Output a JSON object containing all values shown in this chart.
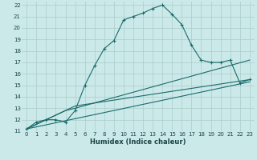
{
  "xlabel": "Humidex (Indice chaleur)",
  "bg_color": "#cce9e9",
  "grid_color": "#aacccc",
  "line_color": "#1a6b6b",
  "xlim": [
    -0.5,
    23.5
  ],
  "ylim": [
    11,
    22.3
  ],
  "xticks": [
    0,
    1,
    2,
    3,
    4,
    5,
    6,
    7,
    8,
    9,
    10,
    11,
    12,
    13,
    14,
    15,
    16,
    17,
    18,
    19,
    20,
    21,
    22,
    23
  ],
  "yticks": [
    11,
    12,
    13,
    14,
    15,
    16,
    17,
    18,
    19,
    20,
    21,
    22
  ],
  "line1_x": [
    0,
    1,
    2,
    3,
    4,
    5,
    6,
    7,
    8,
    9,
    10,
    11,
    12,
    13,
    14,
    15,
    16,
    17,
    18,
    19,
    20,
    21,
    22,
    23
  ],
  "line1_y": [
    11.2,
    11.8,
    12.0,
    12.0,
    11.8,
    12.8,
    15.0,
    16.7,
    18.2,
    18.9,
    20.7,
    21.0,
    21.3,
    21.7,
    22.0,
    21.2,
    20.3,
    18.5,
    17.2,
    17.0,
    17.0,
    17.2,
    15.2,
    15.5
  ],
  "line2_x": [
    0,
    23
  ],
  "line2_y": [
    11.2,
    15.3
  ],
  "line3_x": [
    0,
    4,
    5,
    23
  ],
  "line3_y": [
    11.2,
    12.8,
    13.0,
    17.2
  ],
  "line4_x": [
    0,
    4,
    5,
    23
  ],
  "line4_y": [
    11.2,
    12.8,
    13.2,
    15.5
  ]
}
